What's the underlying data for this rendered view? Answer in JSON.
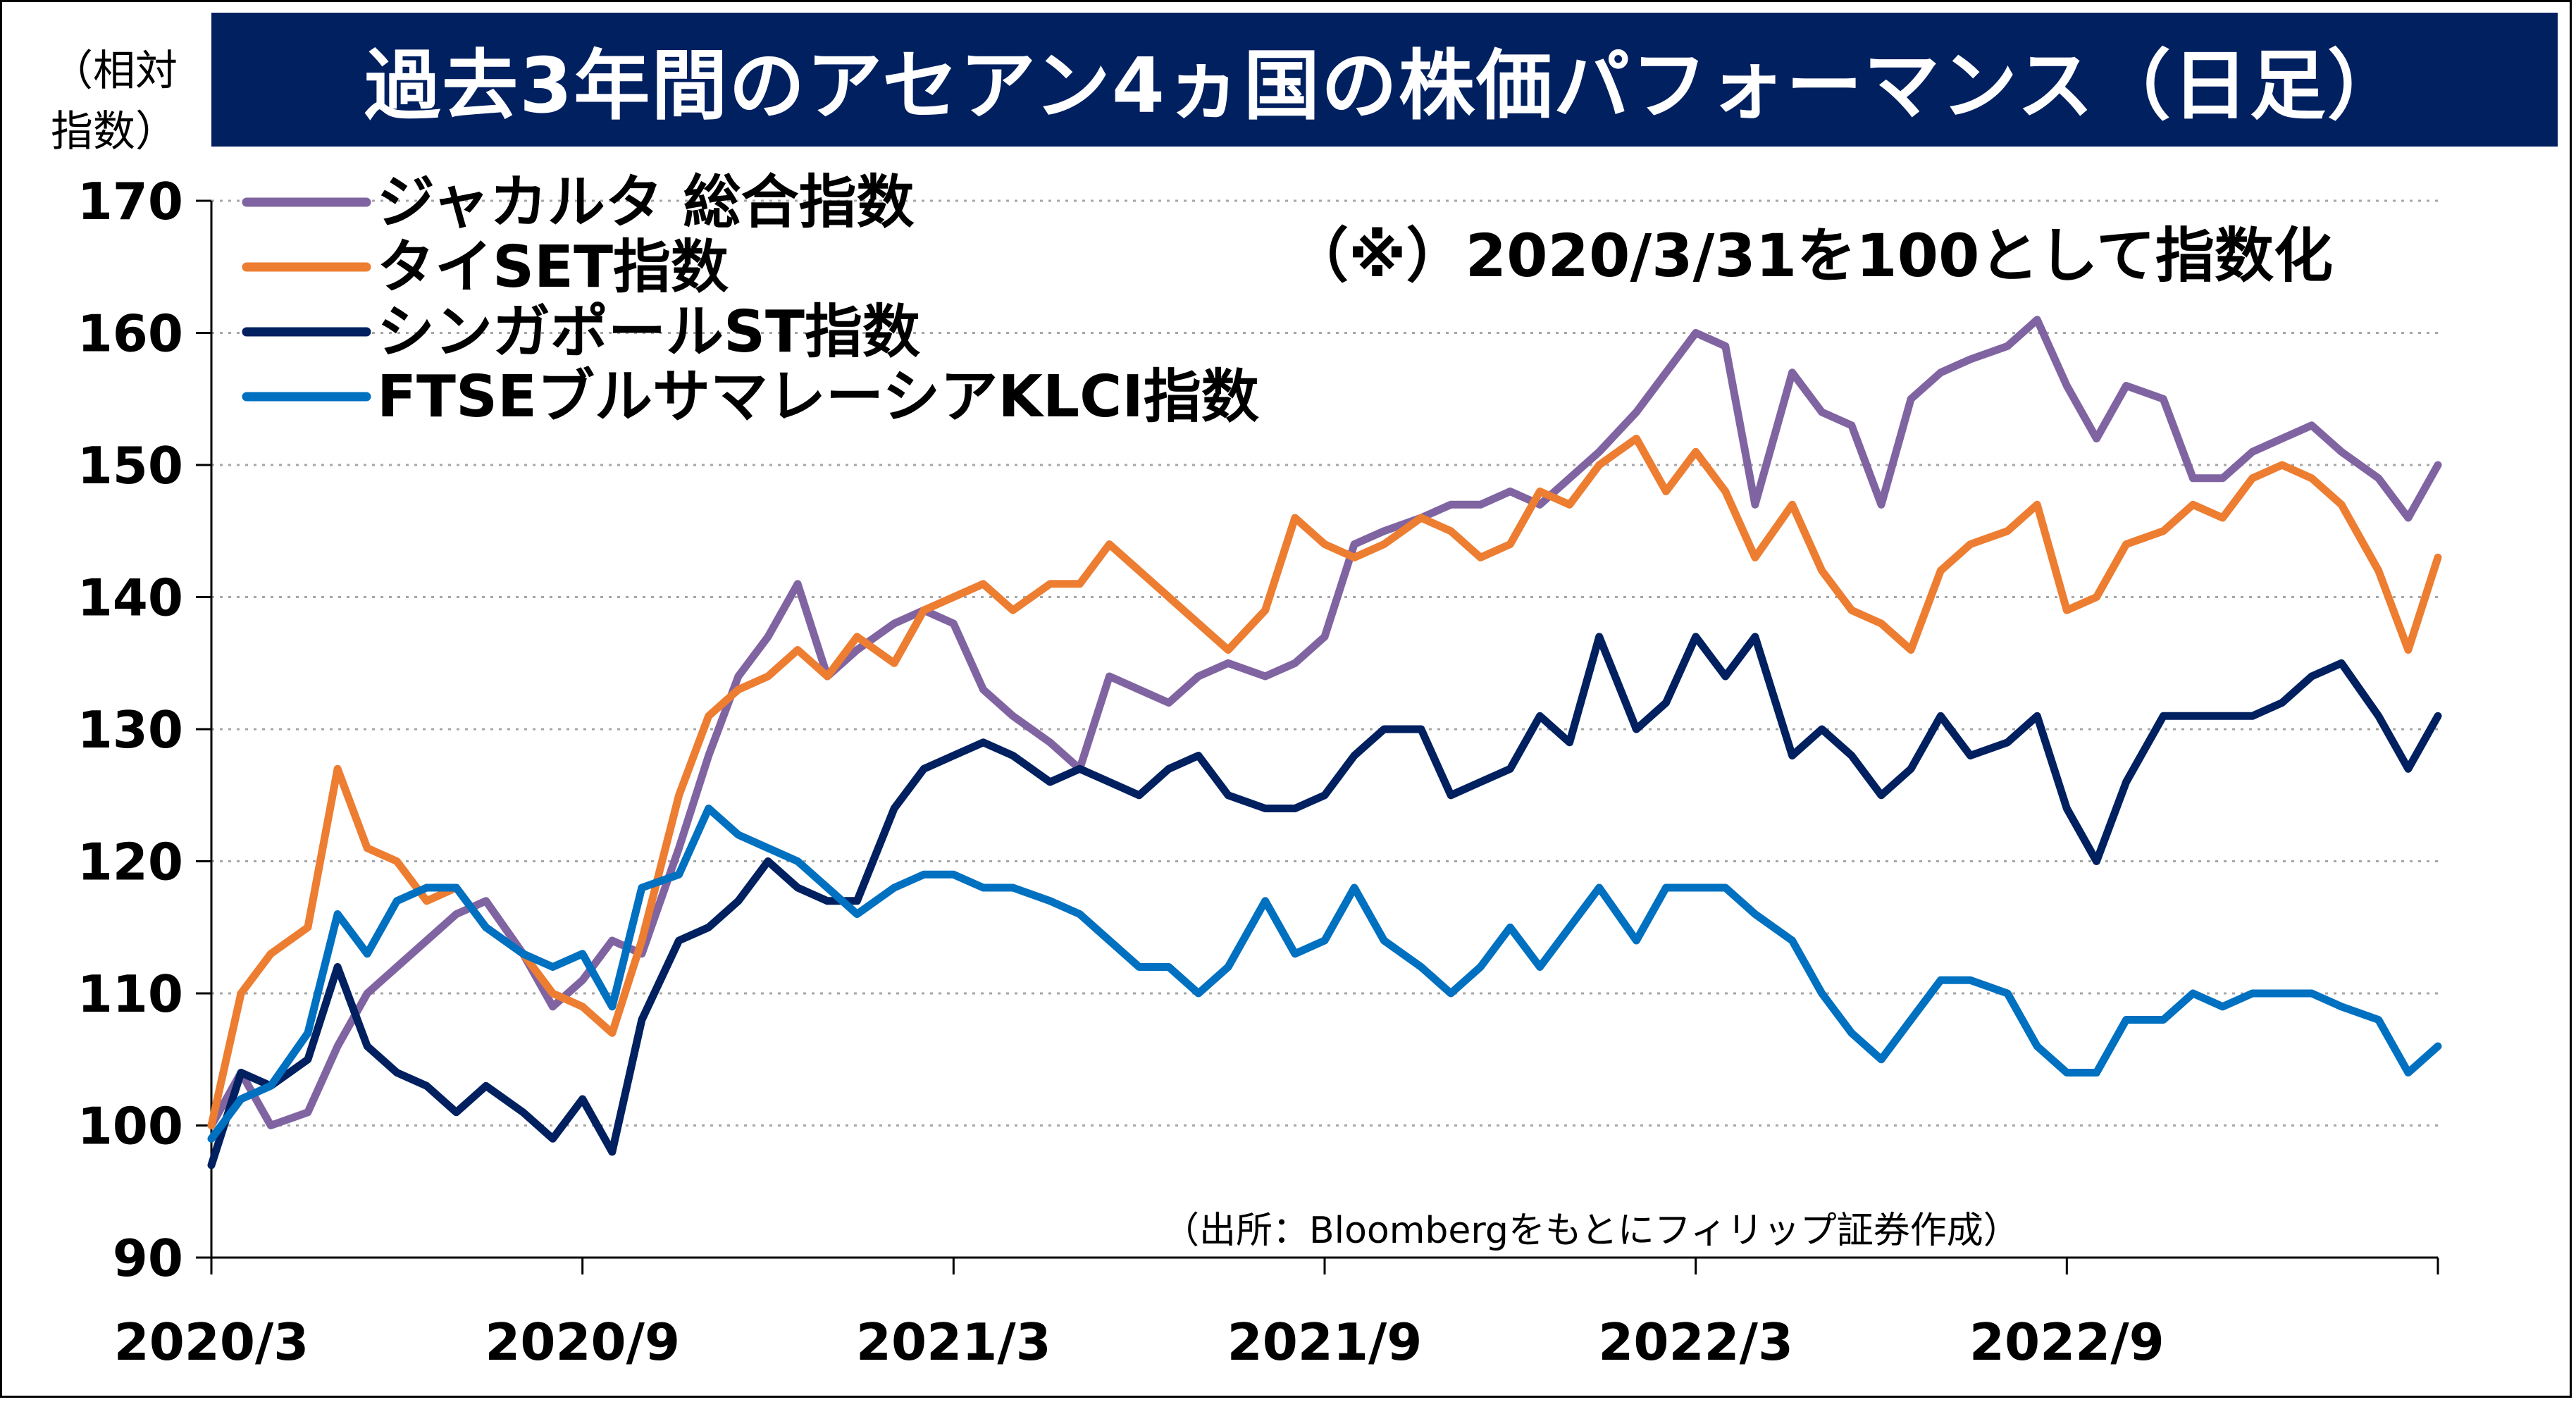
{
  "chart_data": {
    "type": "line",
    "title": "過去3年間のアセアン4ヵ国の株価パフォーマンス（日足）",
    "ylabel": "（相対指数）",
    "ylabel_lines": [
      "（相対",
      "指数）"
    ],
    "note": "（※）2020/3/31を100として指数化",
    "source": "（出所：Bloombergをもとにフィリップ証券作成）",
    "ylim": [
      90,
      170
    ],
    "yticks": [
      90,
      100,
      110,
      120,
      130,
      140,
      150,
      160,
      170
    ],
    "xlim": [
      2020.25,
      2023.25
    ],
    "xticks": [
      {
        "value": 2020.25,
        "label": "2020/3"
      },
      {
        "value": 2020.75,
        "label": "2020/9"
      },
      {
        "value": 2021.25,
        "label": "2021/3"
      },
      {
        "value": 2021.75,
        "label": "2021/9"
      },
      {
        "value": 2022.25,
        "label": "2022/3"
      },
      {
        "value": 2022.75,
        "label": "2022/9"
      }
    ],
    "grid": true,
    "legend_position": "top-left",
    "series": [
      {
        "name": "ジャカルタ 総合指数",
        "color": "#8064A2",
        "points": [
          [
            2020.25,
            100
          ],
          [
            2020.29,
            104
          ],
          [
            2020.33,
            100
          ],
          [
            2020.38,
            101
          ],
          [
            2020.42,
            106
          ],
          [
            2020.46,
            110
          ],
          [
            2020.5,
            112
          ],
          [
            2020.54,
            114
          ],
          [
            2020.58,
            116
          ],
          [
            2020.62,
            117
          ],
          [
            2020.67,
            113
          ],
          [
            2020.71,
            109
          ],
          [
            2020.75,
            111
          ],
          [
            2020.79,
            114
          ],
          [
            2020.83,
            113
          ],
          [
            2020.88,
            121
          ],
          [
            2020.92,
            128
          ],
          [
            2020.96,
            134
          ],
          [
            2021.0,
            137
          ],
          [
            2021.04,
            141
          ],
          [
            2021.08,
            134
          ],
          [
            2021.12,
            136
          ],
          [
            2021.17,
            138
          ],
          [
            2021.21,
            139
          ],
          [
            2021.25,
            138
          ],
          [
            2021.29,
            133
          ],
          [
            2021.33,
            131
          ],
          [
            2021.38,
            129
          ],
          [
            2021.42,
            127
          ],
          [
            2021.46,
            134
          ],
          [
            2021.5,
            133
          ],
          [
            2021.54,
            132
          ],
          [
            2021.58,
            134
          ],
          [
            2021.62,
            135
          ],
          [
            2021.67,
            134
          ],
          [
            2021.71,
            135
          ],
          [
            2021.75,
            137
          ],
          [
            2021.79,
            144
          ],
          [
            2021.83,
            145
          ],
          [
            2021.88,
            146
          ],
          [
            2021.92,
            147
          ],
          [
            2021.96,
            147
          ],
          [
            2022.0,
            148
          ],
          [
            2022.04,
            147
          ],
          [
            2022.08,
            149
          ],
          [
            2022.12,
            151
          ],
          [
            2022.17,
            154
          ],
          [
            2022.21,
            157
          ],
          [
            2022.25,
            160
          ],
          [
            2022.29,
            159
          ],
          [
            2022.33,
            147
          ],
          [
            2022.38,
            157
          ],
          [
            2022.42,
            154
          ],
          [
            2022.46,
            153
          ],
          [
            2022.5,
            147
          ],
          [
            2022.54,
            155
          ],
          [
            2022.58,
            157
          ],
          [
            2022.62,
            158
          ],
          [
            2022.67,
            159
          ],
          [
            2022.71,
            161
          ],
          [
            2022.75,
            156
          ],
          [
            2022.79,
            152
          ],
          [
            2022.83,
            156
          ],
          [
            2022.88,
            155
          ],
          [
            2022.92,
            149
          ],
          [
            2022.96,
            149
          ],
          [
            2023.0,
            151
          ],
          [
            2023.04,
            152
          ],
          [
            2023.08,
            153
          ],
          [
            2023.12,
            151
          ],
          [
            2023.17,
            149
          ],
          [
            2023.21,
            146
          ],
          [
            2023.25,
            150
          ]
        ]
      },
      {
        "name": "タイSET指数",
        "color": "#ED7D31",
        "points": [
          [
            2020.25,
            100
          ],
          [
            2020.29,
            110
          ],
          [
            2020.33,
            113
          ],
          [
            2020.38,
            115
          ],
          [
            2020.42,
            127
          ],
          [
            2020.46,
            121
          ],
          [
            2020.5,
            120
          ],
          [
            2020.54,
            117
          ],
          [
            2020.58,
            118
          ],
          [
            2020.62,
            115
          ],
          [
            2020.67,
            113
          ],
          [
            2020.71,
            110
          ],
          [
            2020.75,
            109
          ],
          [
            2020.79,
            107
          ],
          [
            2020.83,
            114
          ],
          [
            2020.88,
            125
          ],
          [
            2020.92,
            131
          ],
          [
            2020.96,
            133
          ],
          [
            2021.0,
            134
          ],
          [
            2021.04,
            136
          ],
          [
            2021.08,
            134
          ],
          [
            2021.12,
            137
          ],
          [
            2021.17,
            135
          ],
          [
            2021.21,
            139
          ],
          [
            2021.25,
            140
          ],
          [
            2021.29,
            141
          ],
          [
            2021.33,
            139
          ],
          [
            2021.38,
            141
          ],
          [
            2021.42,
            141
          ],
          [
            2021.46,
            144
          ],
          [
            2021.5,
            142
          ],
          [
            2021.54,
            140
          ],
          [
            2021.58,
            138
          ],
          [
            2021.62,
            136
          ],
          [
            2021.67,
            139
          ],
          [
            2021.71,
            146
          ],
          [
            2021.75,
            144
          ],
          [
            2021.79,
            143
          ],
          [
            2021.83,
            144
          ],
          [
            2021.88,
            146
          ],
          [
            2021.92,
            145
          ],
          [
            2021.96,
            143
          ],
          [
            2022.0,
            144
          ],
          [
            2022.04,
            148
          ],
          [
            2022.08,
            147
          ],
          [
            2022.12,
            150
          ],
          [
            2022.17,
            152
          ],
          [
            2022.21,
            148
          ],
          [
            2022.25,
            151
          ],
          [
            2022.29,
            148
          ],
          [
            2022.33,
            143
          ],
          [
            2022.38,
            147
          ],
          [
            2022.42,
            142
          ],
          [
            2022.46,
            139
          ],
          [
            2022.5,
            138
          ],
          [
            2022.54,
            136
          ],
          [
            2022.58,
            142
          ],
          [
            2022.62,
            144
          ],
          [
            2022.67,
            145
          ],
          [
            2022.71,
            147
          ],
          [
            2022.75,
            139
          ],
          [
            2022.79,
            140
          ],
          [
            2022.83,
            144
          ],
          [
            2022.88,
            145
          ],
          [
            2022.92,
            147
          ],
          [
            2022.96,
            146
          ],
          [
            2023.0,
            149
          ],
          [
            2023.04,
            150
          ],
          [
            2023.08,
            149
          ],
          [
            2023.12,
            147
          ],
          [
            2023.17,
            142
          ],
          [
            2023.21,
            136
          ],
          [
            2023.25,
            143
          ]
        ]
      },
      {
        "name": "シンガポールST指数",
        "color": "#002060",
        "points": [
          [
            2020.25,
            97
          ],
          [
            2020.29,
            104
          ],
          [
            2020.33,
            103
          ],
          [
            2020.38,
            105
          ],
          [
            2020.42,
            112
          ],
          [
            2020.46,
            106
          ],
          [
            2020.5,
            104
          ],
          [
            2020.54,
            103
          ],
          [
            2020.58,
            101
          ],
          [
            2020.62,
            103
          ],
          [
            2020.67,
            101
          ],
          [
            2020.71,
            99
          ],
          [
            2020.75,
            102
          ],
          [
            2020.79,
            98
          ],
          [
            2020.83,
            108
          ],
          [
            2020.88,
            114
          ],
          [
            2020.92,
            115
          ],
          [
            2020.96,
            117
          ],
          [
            2021.0,
            120
          ],
          [
            2021.04,
            118
          ],
          [
            2021.08,
            117
          ],
          [
            2021.12,
            117
          ],
          [
            2021.17,
            124
          ],
          [
            2021.21,
            127
          ],
          [
            2021.25,
            128
          ],
          [
            2021.29,
            129
          ],
          [
            2021.33,
            128
          ],
          [
            2021.38,
            126
          ],
          [
            2021.42,
            127
          ],
          [
            2021.46,
            126
          ],
          [
            2021.5,
            125
          ],
          [
            2021.54,
            127
          ],
          [
            2021.58,
            128
          ],
          [
            2021.62,
            125
          ],
          [
            2021.67,
            124
          ],
          [
            2021.71,
            124
          ],
          [
            2021.75,
            125
          ],
          [
            2021.79,
            128
          ],
          [
            2021.83,
            130
          ],
          [
            2021.88,
            130
          ],
          [
            2021.92,
            125
          ],
          [
            2021.96,
            126
          ],
          [
            2022.0,
            127
          ],
          [
            2022.04,
            131
          ],
          [
            2022.08,
            129
          ],
          [
            2022.12,
            137
          ],
          [
            2022.17,
            130
          ],
          [
            2022.21,
            132
          ],
          [
            2022.25,
            137
          ],
          [
            2022.29,
            134
          ],
          [
            2022.33,
            137
          ],
          [
            2022.38,
            128
          ],
          [
            2022.42,
            130
          ],
          [
            2022.46,
            128
          ],
          [
            2022.5,
            125
          ],
          [
            2022.54,
            127
          ],
          [
            2022.58,
            131
          ],
          [
            2022.62,
            128
          ],
          [
            2022.67,
            129
          ],
          [
            2022.71,
            131
          ],
          [
            2022.75,
            124
          ],
          [
            2022.79,
            120
          ],
          [
            2022.83,
            126
          ],
          [
            2022.88,
            131
          ],
          [
            2022.92,
            131
          ],
          [
            2022.96,
            131
          ],
          [
            2023.0,
            131
          ],
          [
            2023.04,
            132
          ],
          [
            2023.08,
            134
          ],
          [
            2023.12,
            135
          ],
          [
            2023.17,
            131
          ],
          [
            2023.21,
            127
          ],
          [
            2023.25,
            131
          ]
        ]
      },
      {
        "name": "FTSEブルサマレーシアKLCI指数",
        "color": "#0070C0",
        "points": [
          [
            2020.25,
            99
          ],
          [
            2020.29,
            102
          ],
          [
            2020.33,
            103
          ],
          [
            2020.38,
            107
          ],
          [
            2020.42,
            116
          ],
          [
            2020.46,
            113
          ],
          [
            2020.5,
            117
          ],
          [
            2020.54,
            118
          ],
          [
            2020.58,
            118
          ],
          [
            2020.62,
            115
          ],
          [
            2020.67,
            113
          ],
          [
            2020.71,
            112
          ],
          [
            2020.75,
            113
          ],
          [
            2020.79,
            109
          ],
          [
            2020.83,
            118
          ],
          [
            2020.88,
            119
          ],
          [
            2020.92,
            124
          ],
          [
            2020.96,
            122
          ],
          [
            2021.0,
            121
          ],
          [
            2021.04,
            120
          ],
          [
            2021.08,
            118
          ],
          [
            2021.12,
            116
          ],
          [
            2021.17,
            118
          ],
          [
            2021.21,
            119
          ],
          [
            2021.25,
            119
          ],
          [
            2021.29,
            118
          ],
          [
            2021.33,
            118
          ],
          [
            2021.38,
            117
          ],
          [
            2021.42,
            116
          ],
          [
            2021.46,
            114
          ],
          [
            2021.5,
            112
          ],
          [
            2021.54,
            112
          ],
          [
            2021.58,
            110
          ],
          [
            2021.62,
            112
          ],
          [
            2021.67,
            117
          ],
          [
            2021.71,
            113
          ],
          [
            2021.75,
            114
          ],
          [
            2021.79,
            118
          ],
          [
            2021.83,
            114
          ],
          [
            2021.88,
            112
          ],
          [
            2021.92,
            110
          ],
          [
            2021.96,
            112
          ],
          [
            2022.0,
            115
          ],
          [
            2022.04,
            112
          ],
          [
            2022.08,
            115
          ],
          [
            2022.12,
            118
          ],
          [
            2022.17,
            114
          ],
          [
            2022.21,
            118
          ],
          [
            2022.25,
            118
          ],
          [
            2022.29,
            118
          ],
          [
            2022.33,
            116
          ],
          [
            2022.38,
            114
          ],
          [
            2022.42,
            110
          ],
          [
            2022.46,
            107
          ],
          [
            2022.5,
            105
          ],
          [
            2022.54,
            108
          ],
          [
            2022.58,
            111
          ],
          [
            2022.62,
            111
          ],
          [
            2022.67,
            110
          ],
          [
            2022.71,
            106
          ],
          [
            2022.75,
            104
          ],
          [
            2022.79,
            104
          ],
          [
            2022.83,
            108
          ],
          [
            2022.88,
            108
          ],
          [
            2022.92,
            110
          ],
          [
            2022.96,
            109
          ],
          [
            2023.0,
            110
          ],
          [
            2023.04,
            110
          ],
          [
            2023.08,
            110
          ],
          [
            2023.12,
            109
          ],
          [
            2023.17,
            108
          ],
          [
            2023.21,
            104
          ],
          [
            2023.25,
            106
          ]
        ]
      }
    ]
  }
}
